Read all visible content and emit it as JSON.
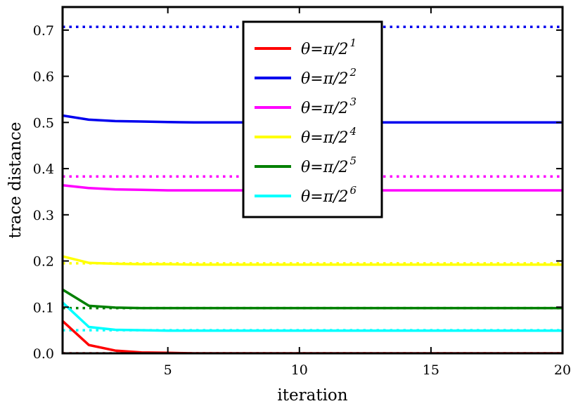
{
  "chart_data": {
    "type": "line",
    "xlabel": "iteration",
    "ylabel": "trace distance",
    "xlim": [
      1,
      20
    ],
    "ylim": [
      0,
      0.75
    ],
    "xticks": [
      5,
      10,
      15,
      20
    ],
    "xtick_labels": [
      "5",
      "10",
      "15",
      "20"
    ],
    "yticks": [
      0,
      0.1,
      0.2,
      0.3,
      0.4,
      0.5,
      0.6,
      0.7
    ],
    "ytick_labels": [
      "0.0",
      "0.1",
      "0.2",
      "0.3",
      "0.4",
      "0.5",
      "0.6",
      "0.7"
    ],
    "grid": false,
    "legend_position": "top-center",
    "x": [
      1,
      2,
      3,
      4,
      5,
      6,
      7,
      8,
      9,
      10,
      11,
      12,
      13,
      14,
      15,
      16,
      17,
      18,
      19,
      20
    ],
    "series": [
      {
        "legend_prefix": "θ=π/2",
        "legend_exp": "1",
        "color": "#ff0000",
        "values": [
          0.07,
          0.018,
          0.006,
          0.002,
          0.001,
          0,
          0,
          0,
          0,
          0,
          0,
          0,
          0,
          0,
          0,
          0,
          0,
          0,
          0,
          0
        ],
        "reference": 0.0
      },
      {
        "legend_prefix": "θ=π/2",
        "legend_exp": "2",
        "color": "#0000ee",
        "values": [
          0.515,
          0.506,
          0.503,
          0.502,
          0.501,
          0.5,
          0.5,
          0.5,
          0.5,
          0.5,
          0.5,
          0.5,
          0.5,
          0.5,
          0.5,
          0.5,
          0.5,
          0.5,
          0.5,
          0.5
        ],
        "reference": 0.707
      },
      {
        "legend_prefix": "θ=π/2",
        "legend_exp": "3",
        "color": "#ff00ff",
        "values": [
          0.364,
          0.358,
          0.355,
          0.354,
          0.353,
          0.353,
          0.353,
          0.353,
          0.353,
          0.353,
          0.353,
          0.353,
          0.353,
          0.353,
          0.353,
          0.353,
          0.353,
          0.353,
          0.353,
          0.353
        ],
        "reference": 0.383
      },
      {
        "legend_prefix": "θ=π/2",
        "legend_exp": "4",
        "color": "#ffff00",
        "values": [
          0.21,
          0.196,
          0.194,
          0.193,
          0.193,
          0.192,
          0.192,
          0.192,
          0.192,
          0.192,
          0.192,
          0.192,
          0.192,
          0.192,
          0.192,
          0.192,
          0.192,
          0.192,
          0.192,
          0.192
        ],
        "reference": 0.195
      },
      {
        "legend_prefix": "θ=π/2",
        "legend_exp": "5",
        "color": "#008000",
        "values": [
          0.138,
          0.103,
          0.099,
          0.098,
          0.098,
          0.098,
          0.098,
          0.098,
          0.098,
          0.098,
          0.098,
          0.098,
          0.098,
          0.098,
          0.098,
          0.098,
          0.098,
          0.098,
          0.098,
          0.098
        ],
        "reference": 0.098
      },
      {
        "legend_prefix": "θ=π/2",
        "legend_exp": "6",
        "color": "#00ffff",
        "values": [
          0.11,
          0.057,
          0.051,
          0.05,
          0.049,
          0.049,
          0.049,
          0.049,
          0.049,
          0.049,
          0.049,
          0.049,
          0.049,
          0.049,
          0.049,
          0.049,
          0.049,
          0.049,
          0.049,
          0.049
        ],
        "reference": 0.05
      }
    ]
  }
}
